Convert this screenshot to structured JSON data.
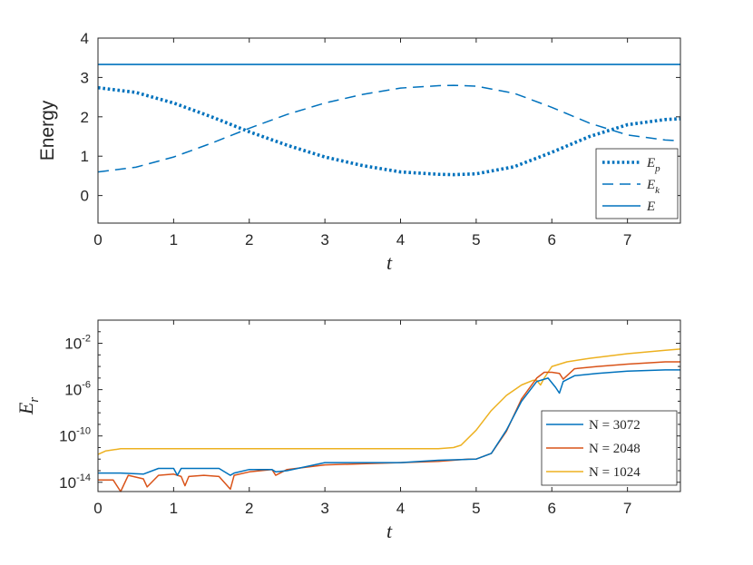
{
  "chart_data": [
    {
      "type": "line",
      "xlabel": "t",
      "ylabel": "Energy",
      "xlim": [
        0,
        7.7
      ],
      "ylim": [
        -0.7,
        4
      ],
      "xticks": [
        "0",
        "1",
        "2",
        "3",
        "4",
        "5",
        "6",
        "7"
      ],
      "yticks": [
        "0",
        "1",
        "2",
        "3",
        "4"
      ],
      "legend_position": "bottom-right",
      "color": "#0072BD",
      "series": [
        {
          "name": "E_p",
          "label_main": "E",
          "label_sub": "p",
          "dash": "dotted",
          "x": [
            0,
            0.5,
            1,
            1.5,
            2,
            2.5,
            3,
            3.5,
            4,
            4.5,
            4.7,
            5,
            5.5,
            6,
            6.5,
            7,
            7.5,
            7.7
          ],
          "y": [
            2.74,
            2.62,
            2.35,
            2.0,
            1.62,
            1.28,
            0.98,
            0.76,
            0.6,
            0.54,
            0.53,
            0.55,
            0.73,
            1.1,
            1.5,
            1.8,
            1.93,
            1.95
          ]
        },
        {
          "name": "E_k",
          "label_main": "E",
          "label_sub": "k",
          "dash": "dashed",
          "x": [
            0,
            0.5,
            1,
            1.5,
            2,
            2.5,
            3,
            3.5,
            4,
            4.5,
            4.7,
            5,
            5.5,
            6,
            6.5,
            7,
            7.5,
            7.7
          ],
          "y": [
            0.6,
            0.72,
            0.98,
            1.33,
            1.71,
            2.06,
            2.35,
            2.57,
            2.73,
            2.79,
            2.8,
            2.78,
            2.6,
            2.24,
            1.84,
            1.54,
            1.41,
            1.39
          ]
        },
        {
          "name": "E",
          "label_main": "E",
          "label_sub": "",
          "dash": "solid",
          "x": [
            0,
            7.7
          ],
          "y": [
            3.33,
            3.33
          ]
        }
      ]
    },
    {
      "type": "line",
      "xlabel": "t",
      "ylabel": "E_r",
      "ylabel_main": "E",
      "ylabel_sub": "r",
      "yscale": "log",
      "xlim": [
        0,
        7.7
      ],
      "ylim_log10": [
        -14.8,
        0
      ],
      "xticks": [
        "0",
        "1",
        "2",
        "3",
        "4",
        "5",
        "6",
        "7"
      ],
      "yticks": [
        {
          "base": "10",
          "exp": "-14",
          "log10": -14
        },
        {
          "base": "10",
          "exp": "-10",
          "log10": -10
        },
        {
          "base": "10",
          "exp": "-6",
          "log10": -6
        },
        {
          "base": "10",
          "exp": "-2",
          "log10": -2
        }
      ],
      "legend_position": "right",
      "series": [
        {
          "name": "N = 3072",
          "label": "N = 3072",
          "color": "#0072BD",
          "x": [
            0,
            0.3,
            0.6,
            0.8,
            1.0,
            1.05,
            1.1,
            1.2,
            1.6,
            1.75,
            1.8,
            2.0,
            2.3,
            2.35,
            2.5,
            3,
            3.5,
            4,
            4.5,
            5.0,
            5.2,
            5.4,
            5.6,
            5.8,
            5.95,
            6.05,
            6.1,
            6.15,
            6.3,
            6.6,
            7,
            7.5,
            7.7
          ],
          "y_log10": [
            -13.2,
            -13.2,
            -13.3,
            -12.8,
            -12.8,
            -13.4,
            -12.8,
            -12.8,
            -12.8,
            -13.4,
            -13.2,
            -12.9,
            -12.9,
            -13.1,
            -13.0,
            -12.3,
            -12.3,
            -12.3,
            -12.1,
            -12.0,
            -11.5,
            -9.5,
            -7.0,
            -5.3,
            -5.0,
            -5.8,
            -6.3,
            -5.3,
            -4.8,
            -4.6,
            -4.4,
            -4.3,
            -4.3
          ]
        },
        {
          "name": "N = 2048",
          "label": "N = 2048",
          "color": "#D95319",
          "x": [
            0,
            0.2,
            0.3,
            0.4,
            0.6,
            0.65,
            0.8,
            1.0,
            1.1,
            1.15,
            1.2,
            1.4,
            1.6,
            1.75,
            1.8,
            2.0,
            2.3,
            2.35,
            2.5,
            3,
            3.5,
            4,
            4.5,
            4.9,
            5.0,
            5.2,
            5.4,
            5.6,
            5.8,
            5.9,
            6.0,
            6.1,
            6.15,
            6.3,
            6.6,
            7,
            7.5,
            7.7
          ],
          "y_log10": [
            -13.8,
            -13.8,
            -14.8,
            -13.4,
            -13.7,
            -14.4,
            -13.4,
            -13.3,
            -13.5,
            -14.3,
            -13.5,
            -13.4,
            -13.5,
            -14.6,
            -13.4,
            -13.1,
            -12.9,
            -13.4,
            -12.9,
            -12.5,
            -12.4,
            -12.3,
            -12.2,
            -12.0,
            -12.0,
            -11.5,
            -9.6,
            -6.8,
            -5.0,
            -4.5,
            -4.5,
            -4.6,
            -5.1,
            -4.2,
            -4.0,
            -3.8,
            -3.6,
            -3.6
          ]
        },
        {
          "name": "N = 1024",
          "label": "N = 1024",
          "color": "#EDB120",
          "x": [
            0,
            0.1,
            0.3,
            0.5,
            1,
            2,
            3,
            4,
            4.5,
            4.7,
            4.8,
            5.0,
            5.2,
            5.4,
            5.6,
            5.75,
            5.8,
            5.85,
            5.9,
            6.0,
            6.2,
            6.5,
            7,
            7.5,
            7.7
          ],
          "y_log10": [
            -11.6,
            -11.3,
            -11.1,
            -11.1,
            -11.1,
            -11.1,
            -11.1,
            -11.1,
            -11.1,
            -11.0,
            -10.8,
            -9.5,
            -7.8,
            -6.5,
            -5.6,
            -5.2,
            -5.2,
            -5.6,
            -5.0,
            -4.0,
            -3.6,
            -3.3,
            -2.9,
            -2.6,
            -2.5
          ]
        }
      ]
    }
  ]
}
